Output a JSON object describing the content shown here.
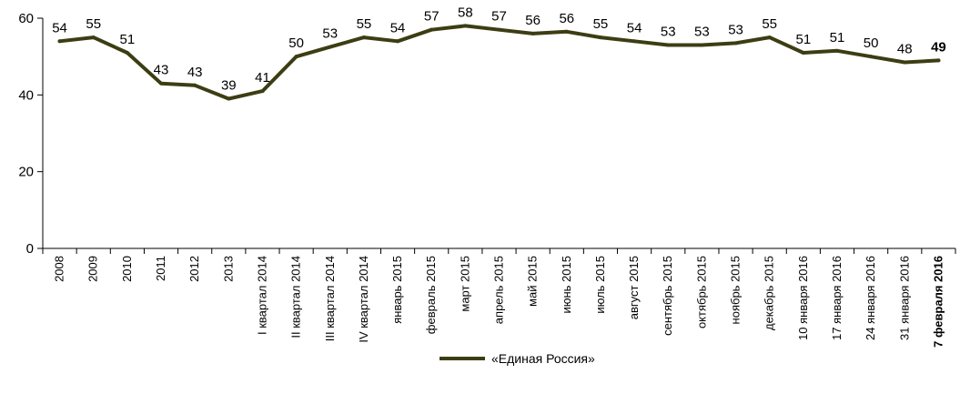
{
  "chart_data": {
    "type": "line",
    "categories": [
      "2008",
      "2009",
      "2010",
      "2011",
      "2012",
      "2013",
      "I квартал 2014",
      "II квартал 2014",
      "III квартал 2014",
      "IV квартал 2014",
      "январь 2015",
      "февраль 2015",
      "март 2015",
      "апрель 2015",
      "май 2015",
      "июнь 2015",
      "июль 2015",
      "август 2015",
      "сентябрь 2015",
      "октябрь 2015",
      "ноябрь 2015",
      "декабрь 2015",
      "10 января 2016",
      "17 января 2016",
      "24 января 2016",
      "31 января 2016",
      "7 февраля 2016"
    ],
    "series": [
      {
        "name": "«Единая Россия»",
        "color": "#3d3d14",
        "values": [
          54,
          55,
          51,
          43,
          42.5,
          39,
          41,
          50,
          52.5,
          55,
          54,
          57,
          58,
          57,
          56,
          56.5,
          55,
          54,
          53,
          53,
          53.5,
          55,
          51,
          51.5,
          50,
          48.5,
          49
        ],
        "labels": [
          "54",
          "55",
          "51",
          "43",
          "43",
          "39",
          "41",
          "50",
          "53",
          "55",
          "54",
          "57",
          "58",
          "57",
          "56",
          "56",
          "55",
          "54",
          "53",
          "53",
          "53",
          "55",
          "51",
          "51",
          "50",
          "48",
          "49"
        ]
      }
    ],
    "yticks": [
      "0",
      "20",
      "40",
      "60"
    ],
    "ylim": [
      0,
      60
    ],
    "grid": false,
    "legend_position": "bottom-center",
    "highlight_last": true
  }
}
